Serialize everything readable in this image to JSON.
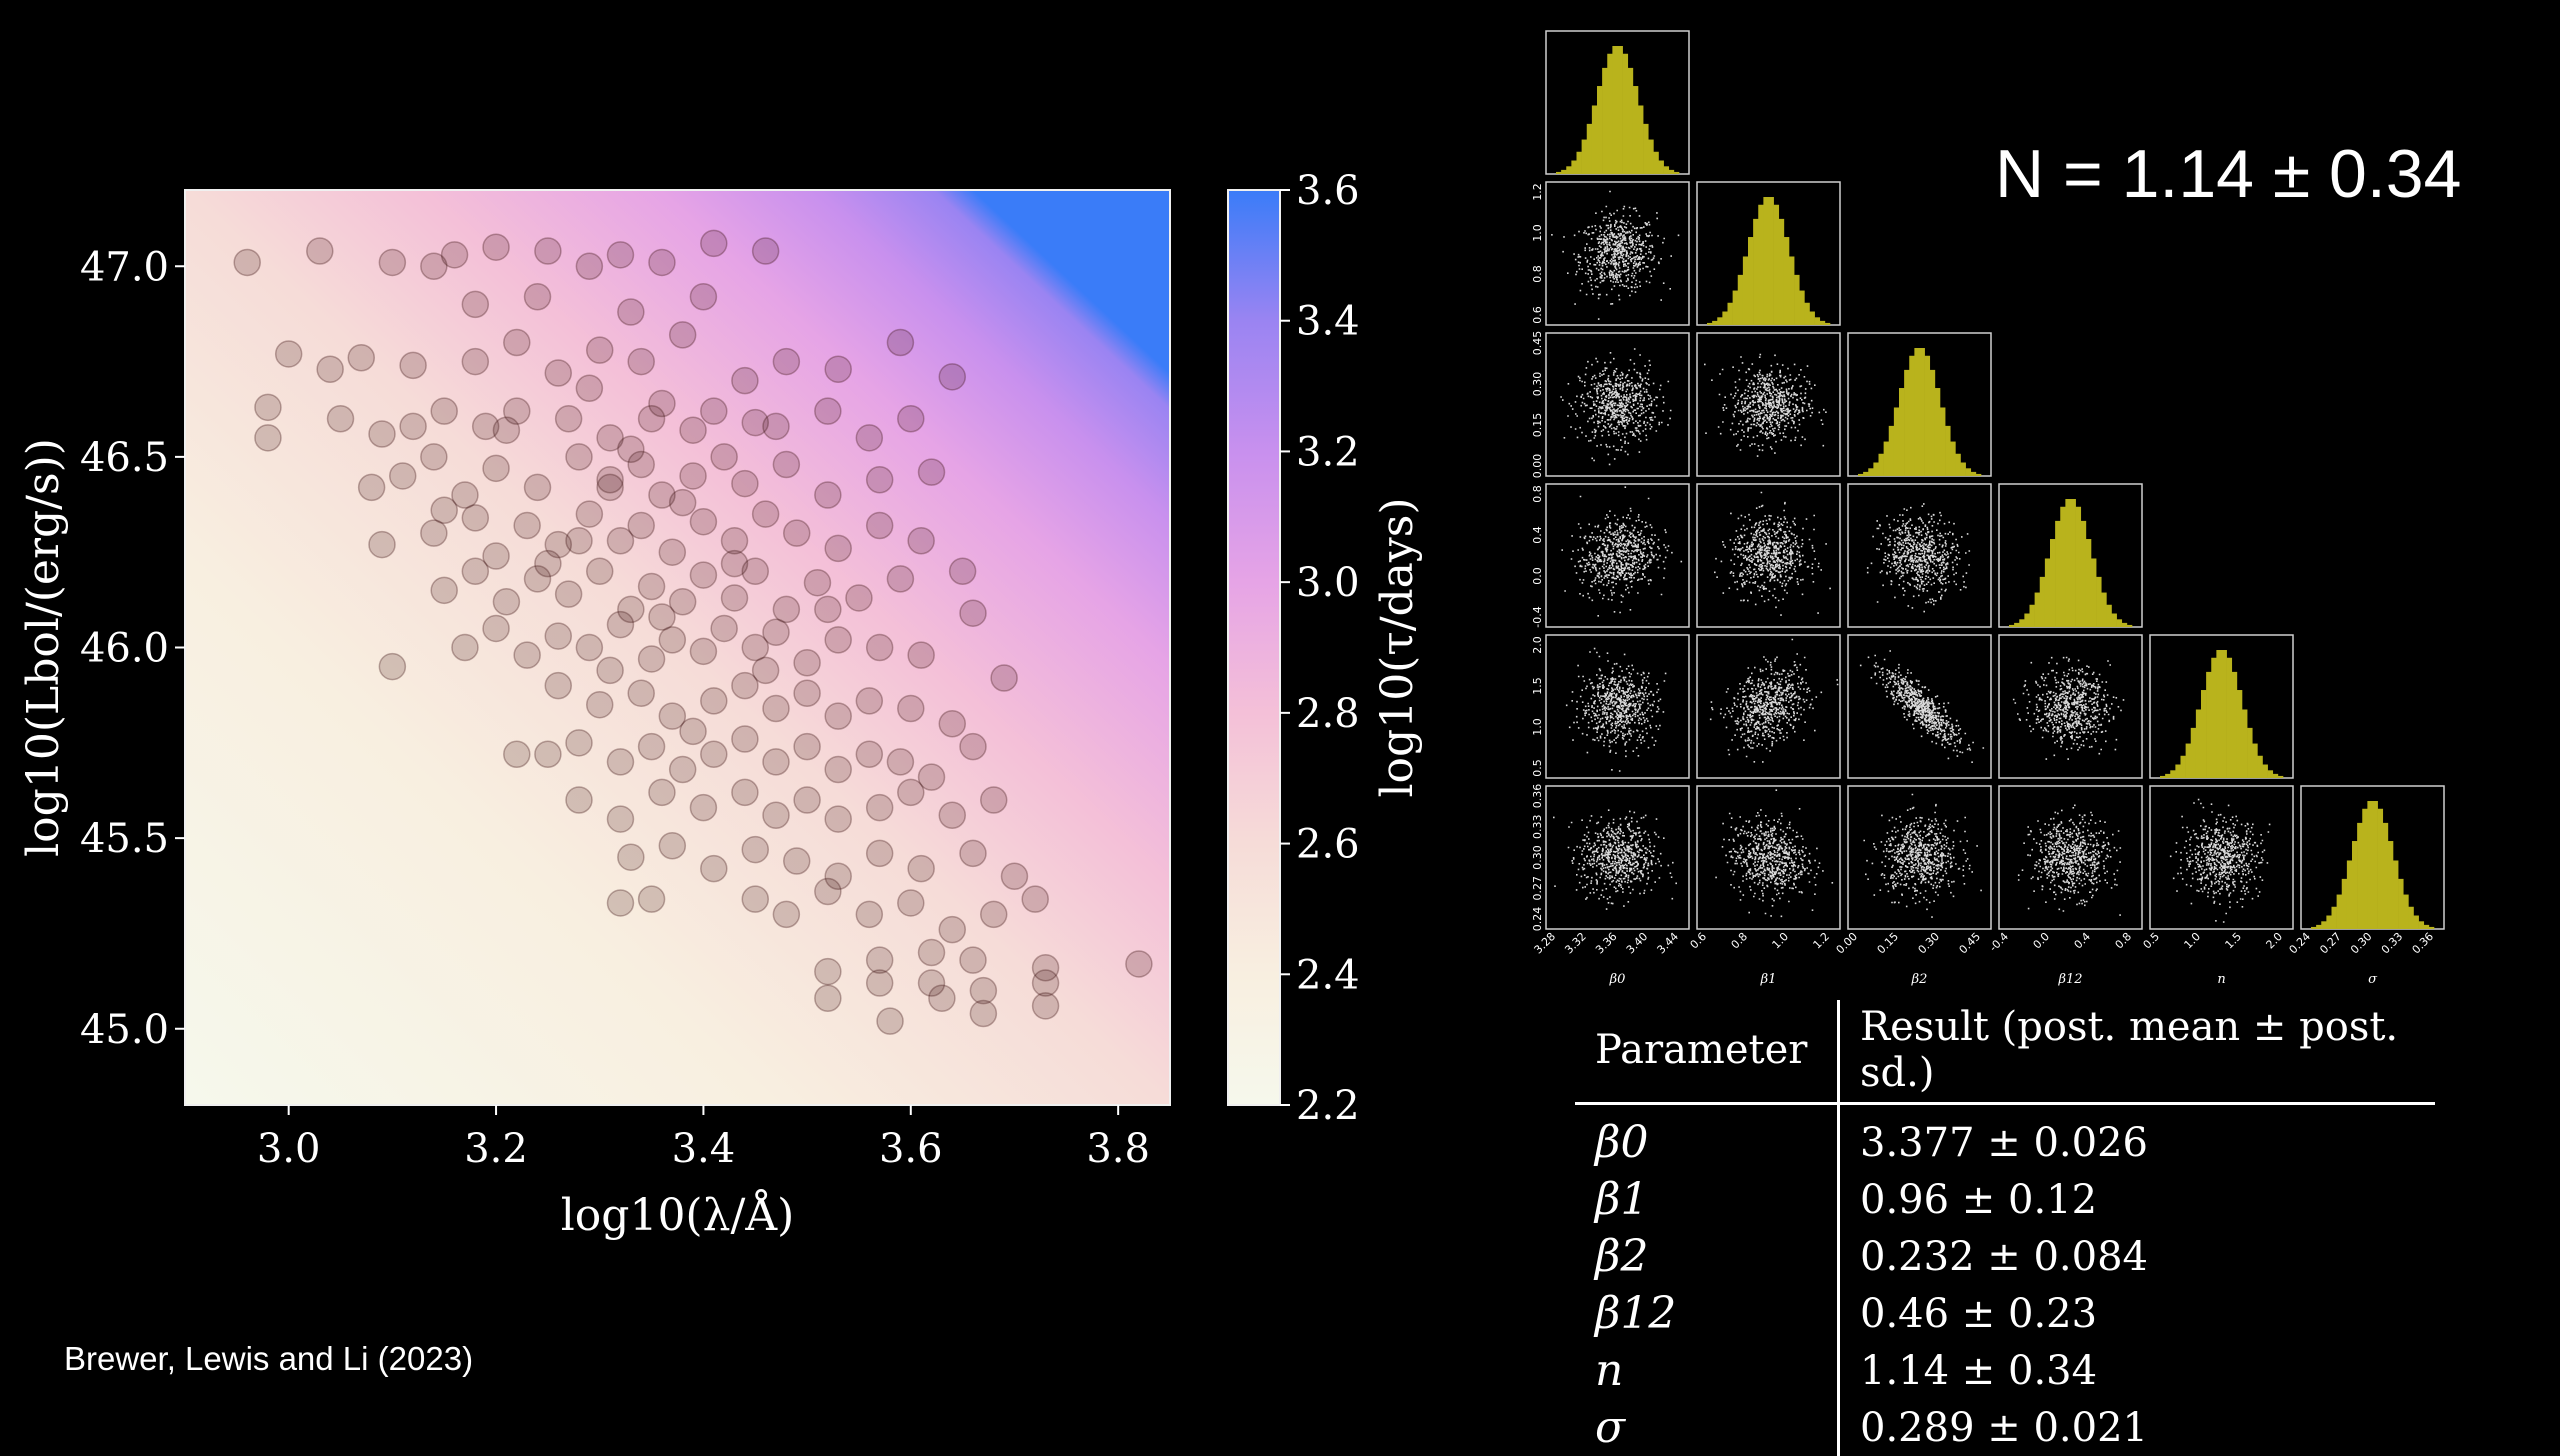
{
  "credit": "Brewer, Lewis and Li (2023)",
  "n_estimate": "N = 1.14 ± 0.34",
  "chart_data": [
    {
      "type": "scatter",
      "xlabel": "log10(λ/Å)",
      "ylabel": "log10(Lbol/(erg/s))",
      "xlim": [
        2.9,
        3.85
      ],
      "ylim": [
        44.8,
        47.2
      ],
      "x_ticks": [
        "3.0",
        "3.2",
        "3.4",
        "3.6",
        "3.8"
      ],
      "y_ticks": [
        "45.0",
        "45.5",
        "46.0",
        "46.5",
        "47.0"
      ],
      "background": "heatmap of log10(τ/days) increasing toward high λ and high L",
      "colorbar": {
        "label": "log10(τ/days)",
        "range": [
          2.2,
          3.6
        ],
        "ticks": [
          "2.2",
          "2.4",
          "2.6",
          "2.8",
          "3.0",
          "3.2",
          "3.4",
          "3.6"
        ],
        "colors": [
          "#f6f8ec",
          "#f8efe0",
          "#f6dcd8",
          "#f4c0d8",
          "#e6a4e6",
          "#c890ee",
          "#9a84f2",
          "#3a7cf8"
        ]
      },
      "point_color": "#3a1010",
      "points": [
        [
          2.96,
          47.01
        ],
        [
          3.03,
          47.04
        ],
        [
          3.1,
          47.01
        ],
        [
          3.14,
          47.0
        ],
        [
          3.16,
          47.03
        ],
        [
          3.2,
          47.05
        ],
        [
          3.25,
          47.04
        ],
        [
          3.29,
          47.0
        ],
        [
          3.32,
          47.03
        ],
        [
          3.36,
          47.01
        ],
        [
          3.41,
          47.06
        ],
        [
          3.46,
          47.04
        ],
        [
          3.0,
          46.77
        ],
        [
          3.04,
          46.73
        ],
        [
          3.07,
          46.76
        ],
        [
          3.12,
          46.74
        ],
        [
          3.18,
          46.75
        ],
        [
          3.22,
          46.8
        ],
        [
          3.26,
          46.72
        ],
        [
          3.3,
          46.78
        ],
        [
          3.34,
          46.75
        ],
        [
          3.38,
          46.82
        ],
        [
          3.44,
          46.7
        ],
        [
          3.48,
          46.75
        ],
        [
          3.53,
          46.73
        ],
        [
          3.59,
          46.8
        ],
        [
          3.64,
          46.71
        ],
        [
          2.98,
          46.55
        ],
        [
          2.98,
          46.63
        ],
        [
          3.05,
          46.6
        ],
        [
          3.09,
          46.56
        ],
        [
          3.12,
          46.58
        ],
        [
          3.15,
          46.62
        ],
        [
          3.21,
          46.57
        ],
        [
          3.27,
          46.6
        ],
        [
          3.31,
          46.55
        ],
        [
          3.35,
          46.6
        ],
        [
          3.39,
          46.57
        ],
        [
          3.45,
          46.59
        ],
        [
          3.52,
          46.62
        ],
        [
          3.56,
          46.55
        ],
        [
          3.6,
          46.6
        ],
        [
          3.08,
          46.42
        ],
        [
          3.11,
          46.45
        ],
        [
          3.14,
          46.5
        ],
        [
          3.17,
          46.4
        ],
        [
          3.2,
          46.47
        ],
        [
          3.24,
          46.42
        ],
        [
          3.28,
          46.5
        ],
        [
          3.31,
          46.44
        ],
        [
          3.34,
          46.48
        ],
        [
          3.36,
          46.4
        ],
        [
          3.39,
          46.45
        ],
        [
          3.42,
          46.5
        ],
        [
          3.44,
          46.43
        ],
        [
          3.48,
          46.48
        ],
        [
          3.52,
          46.4
        ],
        [
          3.57,
          46.44
        ],
        [
          3.62,
          46.46
        ],
        [
          3.09,
          46.27
        ],
        [
          3.14,
          46.3
        ],
        [
          3.18,
          46.34
        ],
        [
          3.2,
          46.24
        ],
        [
          3.23,
          46.32
        ],
        [
          3.26,
          46.27
        ],
        [
          3.29,
          46.35
        ],
        [
          3.32,
          46.28
        ],
        [
          3.34,
          46.32
        ],
        [
          3.37,
          46.25
        ],
        [
          3.4,
          46.33
        ],
        [
          3.43,
          46.28
        ],
        [
          3.46,
          46.35
        ],
        [
          3.49,
          46.3
        ],
        [
          3.53,
          46.26
        ],
        [
          3.57,
          46.32
        ],
        [
          3.61,
          46.28
        ],
        [
          3.15,
          46.15
        ],
        [
          3.18,
          46.2
        ],
        [
          3.21,
          46.12
        ],
        [
          3.24,
          46.18
        ],
        [
          3.27,
          46.14
        ],
        [
          3.3,
          46.2
        ],
        [
          3.33,
          46.1
        ],
        [
          3.35,
          46.16
        ],
        [
          3.38,
          46.12
        ],
        [
          3.4,
          46.19
        ],
        [
          3.43,
          46.13
        ],
        [
          3.45,
          46.2
        ],
        [
          3.48,
          46.1
        ],
        [
          3.51,
          46.17
        ],
        [
          3.55,
          46.13
        ],
        [
          3.59,
          46.18
        ],
        [
          3.65,
          46.2
        ],
        [
          3.17,
          46.0
        ],
        [
          3.2,
          46.05
        ],
        [
          3.23,
          45.98
        ],
        [
          3.26,
          46.03
        ],
        [
          3.29,
          46.0
        ],
        [
          3.32,
          46.06
        ],
        [
          3.35,
          45.97
        ],
        [
          3.37,
          46.02
        ],
        [
          3.4,
          45.99
        ],
        [
          3.42,
          46.05
        ],
        [
          3.45,
          46.0
        ],
        [
          3.47,
          46.04
        ],
        [
          3.5,
          45.96
        ],
        [
          3.53,
          46.02
        ],
        [
          3.57,
          46.0
        ],
        [
          3.61,
          45.98
        ],
        [
          3.66,
          46.09
        ],
        [
          3.1,
          45.95
        ],
        [
          3.26,
          45.9
        ],
        [
          3.3,
          45.85
        ],
        [
          3.34,
          45.88
        ],
        [
          3.37,
          45.82
        ],
        [
          3.41,
          45.86
        ],
        [
          3.44,
          45.9
        ],
        [
          3.47,
          45.84
        ],
        [
          3.5,
          45.88
        ],
        [
          3.53,
          45.82
        ],
        [
          3.56,
          45.86
        ],
        [
          3.6,
          45.84
        ],
        [
          3.64,
          45.8
        ],
        [
          3.69,
          45.92
        ],
        [
          3.25,
          45.72
        ],
        [
          3.28,
          45.75
        ],
        [
          3.32,
          45.7
        ],
        [
          3.35,
          45.74
        ],
        [
          3.38,
          45.68
        ],
        [
          3.41,
          45.72
        ],
        [
          3.44,
          45.76
        ],
        [
          3.47,
          45.7
        ],
        [
          3.5,
          45.74
        ],
        [
          3.53,
          45.68
        ],
        [
          3.56,
          45.72
        ],
        [
          3.59,
          45.7
        ],
        [
          3.62,
          45.66
        ],
        [
          3.66,
          45.74
        ],
        [
          3.22,
          45.72
        ],
        [
          3.28,
          45.6
        ],
        [
          3.32,
          45.55
        ],
        [
          3.36,
          45.62
        ],
        [
          3.4,
          45.58
        ],
        [
          3.44,
          45.62
        ],
        [
          3.47,
          45.56
        ],
        [
          3.5,
          45.6
        ],
        [
          3.53,
          45.55
        ],
        [
          3.57,
          45.58
        ],
        [
          3.6,
          45.62
        ],
        [
          3.64,
          45.56
        ],
        [
          3.68,
          45.6
        ],
        [
          3.33,
          45.45
        ],
        [
          3.37,
          45.48
        ],
        [
          3.41,
          45.42
        ],
        [
          3.45,
          45.47
        ],
        [
          3.49,
          45.44
        ],
        [
          3.53,
          45.4
        ],
        [
          3.57,
          45.46
        ],
        [
          3.61,
          45.42
        ],
        [
          3.66,
          45.46
        ],
        [
          3.7,
          45.4
        ],
        [
          3.32,
          45.33
        ],
        [
          3.35,
          45.34
        ],
        [
          3.45,
          45.34
        ],
        [
          3.48,
          45.3
        ],
        [
          3.52,
          45.36
        ],
        [
          3.56,
          45.3
        ],
        [
          3.6,
          45.33
        ],
        [
          3.64,
          45.26
        ],
        [
          3.68,
          45.3
        ],
        [
          3.72,
          45.34
        ],
        [
          3.62,
          45.2
        ],
        [
          3.66,
          45.18
        ],
        [
          3.73,
          45.16
        ],
        [
          3.82,
          45.17
        ],
        [
          3.52,
          45.15
        ],
        [
          3.57,
          45.18
        ],
        [
          3.62,
          45.12
        ],
        [
          3.67,
          45.1
        ],
        [
          3.73,
          45.12
        ],
        [
          3.52,
          45.08
        ],
        [
          3.57,
          45.12
        ],
        [
          3.63,
          45.08
        ],
        [
          3.58,
          45.02
        ],
        [
          3.67,
          45.04
        ],
        [
          3.73,
          45.06
        ],
        [
          3.29,
          46.68
        ],
        [
          3.36,
          46.64
        ],
        [
          3.41,
          46.62
        ],
        [
          3.22,
          46.62
        ],
        [
          3.15,
          46.36
        ],
        [
          3.25,
          46.22
        ],
        [
          3.38,
          46.38
        ],
        [
          3.31,
          46.42
        ],
        [
          3.43,
          46.22
        ],
        [
          3.36,
          46.08
        ],
        [
          3.46,
          45.94
        ],
        [
          3.39,
          45.78
        ],
        [
          3.31,
          45.94
        ],
        [
          3.52,
          46.1
        ],
        [
          3.28,
          46.28
        ],
        [
          3.33,
          46.52
        ],
        [
          3.19,
          46.58
        ],
        [
          3.47,
          46.58
        ],
        [
          3.24,
          46.92
        ],
        [
          3.4,
          46.92
        ],
        [
          3.33,
          46.88
        ],
        [
          3.18,
          46.9
        ]
      ]
    },
    {
      "type": "scatter",
      "subtype": "corner-plot",
      "histogram_color": "#b9b31c",
      "point_color": "#ffffff",
      "parameters": [
        {
          "symbol": "β0",
          "mean": 3.377,
          "sd": 0.026,
          "ticks": [
            "3.28",
            "3.32",
            "3.36",
            "3.40",
            "3.44"
          ]
        },
        {
          "symbol": "β1",
          "mean": 0.96,
          "sd": 0.12,
          "ticks": [
            "0.6",
            "0.8",
            "1.0",
            "1.2"
          ]
        },
        {
          "symbol": "β2",
          "mean": 0.232,
          "sd": 0.084,
          "ticks": [
            "0.00",
            "0.15",
            "0.30",
            "0.45"
          ]
        },
        {
          "symbol": "β12",
          "mean": 0.46,
          "sd": 0.23,
          "ticks": [
            "-0.4",
            "0.0",
            "0.4",
            "0.8"
          ]
        },
        {
          "symbol": "n",
          "mean": 1.14,
          "sd": 0.34,
          "ticks": [
            "0.5",
            "1.0",
            "1.5",
            "2.0"
          ]
        },
        {
          "symbol": "σ",
          "mean": 0.289,
          "sd": 0.021,
          "ticks": [
            "0.24",
            "0.27",
            "0.30",
            "0.33",
            "0.36"
          ]
        }
      ],
      "correlations": [
        [
          1,
          0,
          0,
          0,
          0,
          0
        ],
        [
          0.05,
          1,
          0,
          0,
          0,
          0
        ],
        [
          0,
          0,
          1,
          0,
          0,
          0
        ],
        [
          0.2,
          0,
          -0.1,
          1,
          0,
          0
        ],
        [
          0,
          0.3,
          -0.85,
          0,
          1,
          0
        ],
        [
          0,
          -0.1,
          0,
          0,
          0,
          1
        ]
      ]
    }
  ],
  "table": {
    "headers": [
      "Parameter",
      "Result (post. mean ± post. sd.)"
    ],
    "rows": [
      {
        "param": "β0",
        "result": "3.377 ± 0.026"
      },
      {
        "param": "β1",
        "result": "0.96 ± 0.12"
      },
      {
        "param": "β2",
        "result": "0.232 ± 0.084"
      },
      {
        "param": "β12",
        "result": "0.46 ± 0.23"
      },
      {
        "param": "n",
        "result": "1.14 ± 0.34"
      },
      {
        "param": "σ",
        "result": "0.289 ± 0.021"
      }
    ]
  }
}
